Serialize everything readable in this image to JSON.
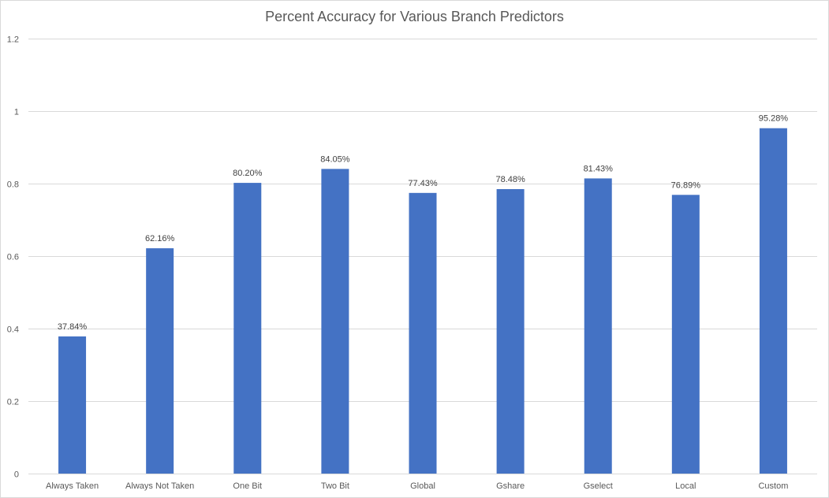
{
  "chart_data": {
    "type": "bar",
    "title": "Percent Accuracy for Various Branch Predictors",
    "xlabel": "",
    "ylabel": "",
    "categories": [
      "Always Taken",
      "Always Not Taken",
      "One Bit",
      "Two Bit",
      "Global",
      "Gshare",
      "Gselect",
      "Local",
      "Custom"
    ],
    "values": [
      0.3784,
      0.6216,
      0.802,
      0.8405,
      0.7743,
      0.7848,
      0.8143,
      0.7689,
      0.9528
    ],
    "data_labels": [
      "37.84%",
      "62.16%",
      "80.20%",
      "84.05%",
      "77.43%",
      "78.48%",
      "81.43%",
      "76.89%",
      "95.28%"
    ],
    "ylim": [
      0,
      1.2
    ],
    "yticks": [
      "0",
      "0.2",
      "0.4",
      "0.6",
      "0.8",
      "1",
      "1.2"
    ],
    "grid": true,
    "bar_color": "#4472c4",
    "grid_color": "#d9d9d9"
  }
}
